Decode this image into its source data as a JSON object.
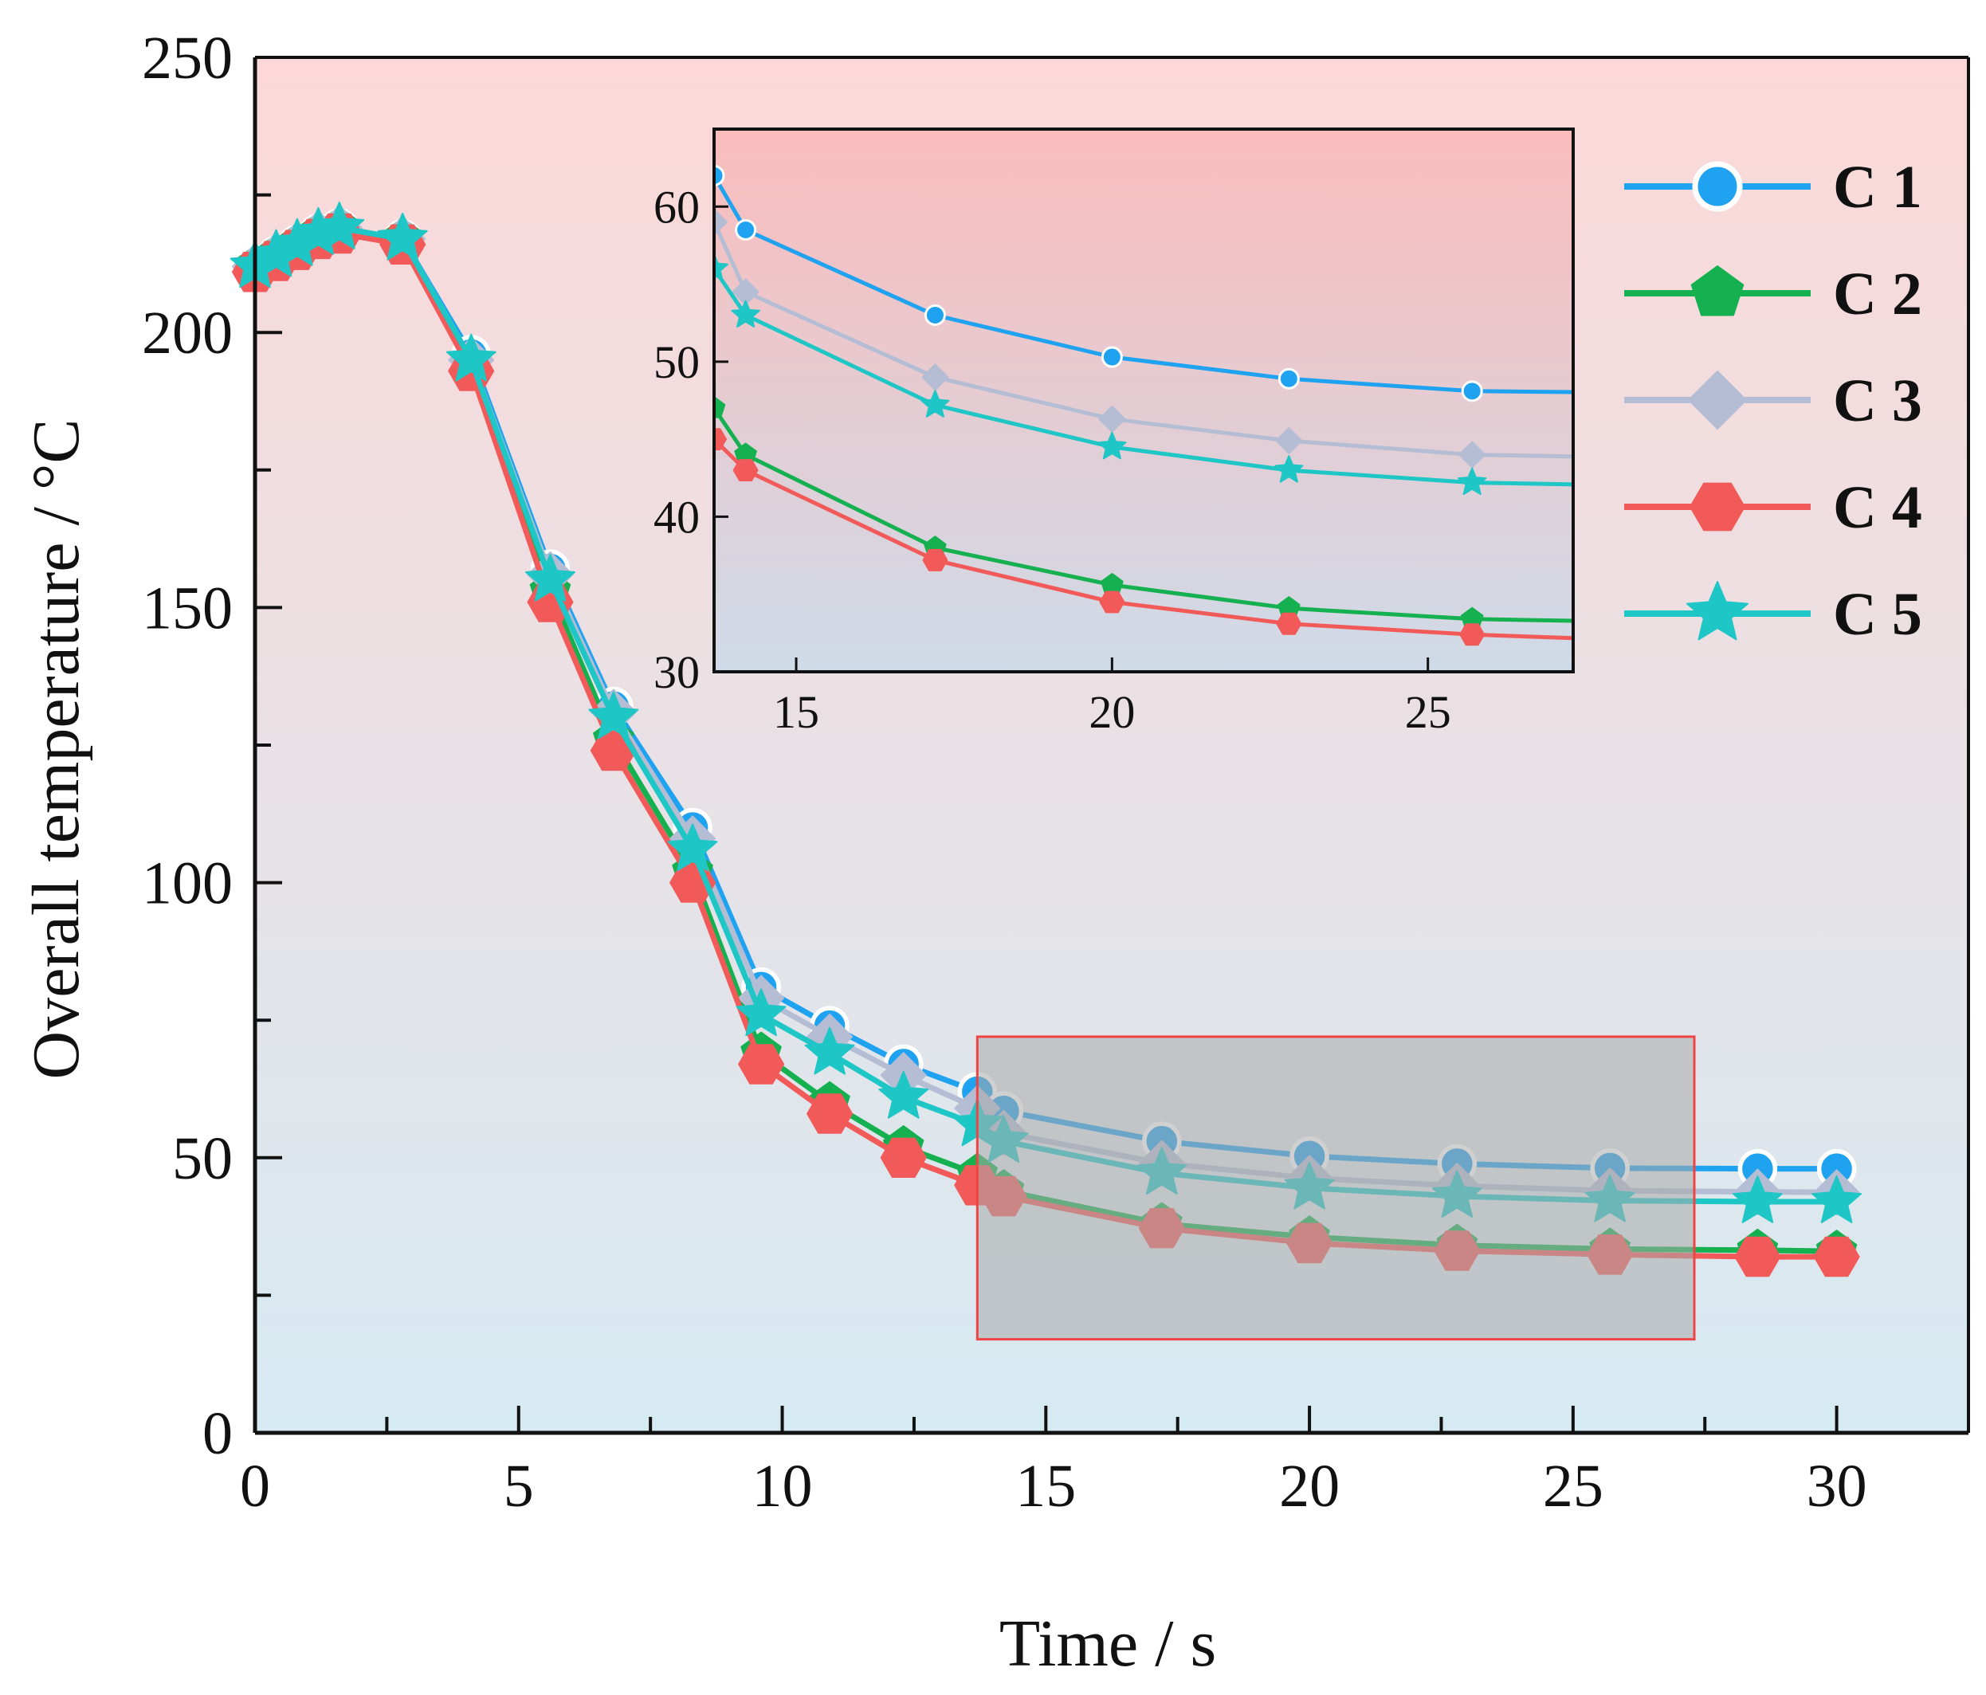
{
  "chart_data": {
    "type": "line",
    "xlabel": "Time / s",
    "ylabel": "Overall temperature / °C",
    "xlim": [
      0,
      32.5
    ],
    "ylim": [
      0,
      250
    ],
    "xticks": [
      0,
      5,
      10,
      15,
      20,
      25,
      30
    ],
    "yticks": [
      0,
      50,
      100,
      150,
      200,
      250
    ],
    "legend_position": "top-right",
    "colors": {
      "C 1": "#1fa3f0",
      "C 2": "#15b050",
      "C 3": "#b4bdd4",
      "C 4": "#f25a5a",
      "C 5": "#1fc6c6",
      "highlight_box": "#ee4444",
      "background_top": "#fcd8d8",
      "background_bottom": "#d6eaf2"
    },
    "x": [
      0,
      0.4,
      0.8,
      1.2,
      1.6,
      2.8,
      4.1,
      5.6,
      6.8,
      8.3,
      9.6,
      10.9,
      12.3,
      13.7,
      14.2,
      17.2,
      20.0,
      22.8,
      25.7,
      28.5,
      30.0
    ],
    "series": [
      {
        "name": "C 1",
        "marker": "circle",
        "values": [
          212,
          214,
          216,
          218,
          219,
          217,
          196,
          157,
          132,
          110,
          81,
          74,
          67,
          62,
          58.5,
          53,
          50.3,
          48.9,
          48.1,
          48,
          48
        ]
      },
      {
        "name": "C 2",
        "marker": "pentagon",
        "values": [
          212,
          214,
          216,
          218,
          219,
          217,
          194,
          153,
          126,
          102,
          69,
          60,
          52,
          47,
          44,
          38,
          35.6,
          34.1,
          33.4,
          33.2,
          33
        ]
      },
      {
        "name": "C 3",
        "marker": "diamond",
        "values": [
          212,
          214,
          216,
          218,
          219,
          217,
          195,
          156,
          131,
          108,
          79,
          72,
          65,
          59,
          54.5,
          49,
          46.3,
          44.9,
          44,
          43.8,
          43.7
        ]
      },
      {
        "name": "C 4",
        "marker": "hexagon",
        "values": [
          211,
          213,
          215,
          217,
          218,
          216,
          193,
          151,
          124,
          100,
          67,
          58,
          50,
          45,
          43,
          37.2,
          34.5,
          33.1,
          32.4,
          32,
          32
        ]
      },
      {
        "name": "C 5",
        "marker": "star",
        "values": [
          212,
          214,
          216,
          218,
          219,
          217,
          195,
          155,
          130,
          106,
          76,
          69,
          61,
          56,
          53,
          47.2,
          44.5,
          43,
          42.2,
          42,
          42
        ]
      }
    ],
    "highlight_region": {
      "x": [
        13.7,
        27.3
      ],
      "y": [
        17,
        72
      ]
    },
    "inset": {
      "xlim": [
        13.7,
        27.3
      ],
      "ylim": [
        30,
        65
      ],
      "xticks": [
        15,
        20,
        25
      ],
      "yticks": [
        30,
        40,
        50,
        60
      ]
    }
  }
}
